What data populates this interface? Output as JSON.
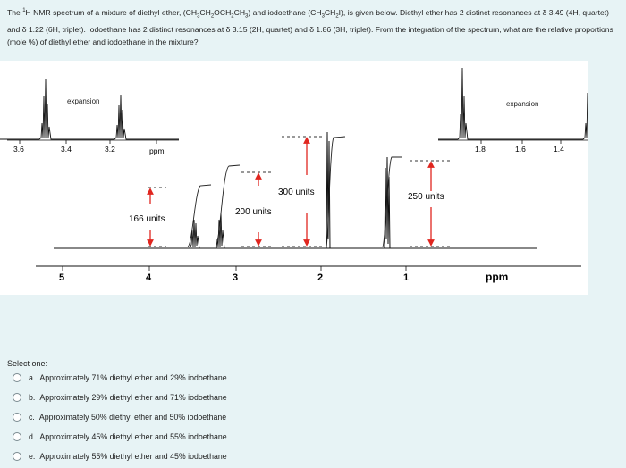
{
  "question": {
    "p1": "The ",
    "sup1": "1",
    "p2": "H NMR spectrum of a mixture of diethyl ether, (CH",
    "s1": "3",
    "p3": "CH",
    "s2": "2",
    "p4": "OCH",
    "s3": "2",
    "p5": "CH",
    "s4": "3",
    "p6": ") and iodoethane (CH",
    "s5": "3",
    "p7": "CH",
    "s6": "2",
    "p8": "I), is given below.  Diethyl ether has 2 distinct resonances at δ 3.49 (4H, quartet) and δ 1.22 (6H, triplet).  Iodoethane has 2 distinct resonances at δ 3.15 (2H, quartet) and δ 1.86 (3H, triplet).  From the integration of the spectrum, what are the relative proportions (mole %) of diethyl ether and iodoethane in the mixture?"
  },
  "spectrum": {
    "expansion_left": "expansion",
    "expansion_right": "expansion",
    "inset_left_ticks": [
      "3.6",
      "3.4",
      "3.2"
    ],
    "inset_left_unit": "ppm",
    "inset_right_ticks": [
      "1.8",
      "1.6",
      "1.4"
    ],
    "inset_right_unit": "ppm",
    "main_ticks": [
      "5",
      "4",
      "3",
      "2",
      "1"
    ],
    "main_unit": "ppm",
    "integrals": [
      {
        "label": "166 units",
        "value": 166
      },
      {
        "label": "200 units",
        "value": 200
      },
      {
        "label": "300 units",
        "value": 300
      },
      {
        "label": "250 units",
        "value": 250
      }
    ],
    "colors": {
      "arrow": "#e0261f",
      "trace": "#111111"
    }
  },
  "select_one": "Select one:",
  "options": [
    {
      "letter": "a.",
      "text": "Approximately 71% diethyl ether and 29% iodoethane"
    },
    {
      "letter": "b.",
      "text": "Approximately 29% diethyl ether and 71% iodoethane"
    },
    {
      "letter": "c.",
      "text": "Approximately 50% diethyl ether and 50% iodoethane"
    },
    {
      "letter": "d.",
      "text": "Approximately 45% diethyl ether and 55% iodoethane"
    },
    {
      "letter": "e.",
      "text": "Approximately 55% diethyl ether and 45% iodoethane"
    }
  ]
}
